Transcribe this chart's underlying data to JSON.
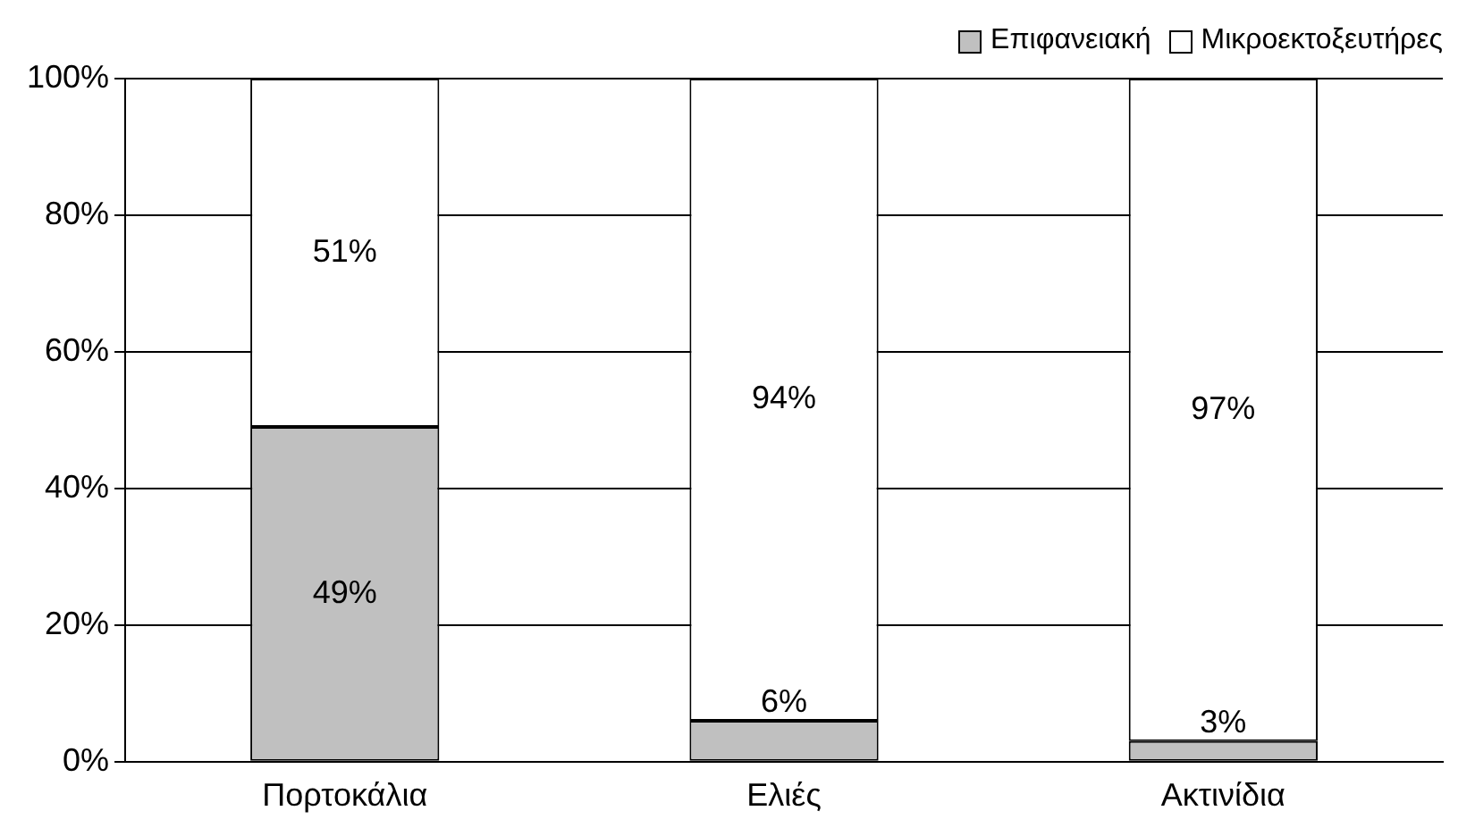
{
  "chart_data": {
    "type": "bar",
    "stacked": true,
    "categories": [
      "Πορτοκάλια",
      "Ελιές",
      "Ακτινίδια"
    ],
    "series": [
      {
        "name": "Επιφανειακή",
        "color": "#c0c0c0",
        "values": [
          49,
          6,
          3
        ]
      },
      {
        "name": "Μικροεκτοξευτήρες",
        "color": "#ffffff",
        "values": [
          51,
          94,
          97
        ]
      }
    ],
    "ylim": [
      0,
      100
    ],
    "yticks": [
      {
        "value": 0,
        "label": "0%"
      },
      {
        "value": 20,
        "label": "20%"
      },
      {
        "value": 40,
        "label": "40%"
      },
      {
        "value": 60,
        "label": "60%"
      },
      {
        "value": 80,
        "label": "80%"
      },
      {
        "value": 100,
        "label": "100%"
      }
    ],
    "value_labels": [
      [
        "49%",
        "6%",
        "3%"
      ],
      [
        "51%",
        "94%",
        "97%"
      ]
    ],
    "grid": "y",
    "legend": "top right"
  }
}
